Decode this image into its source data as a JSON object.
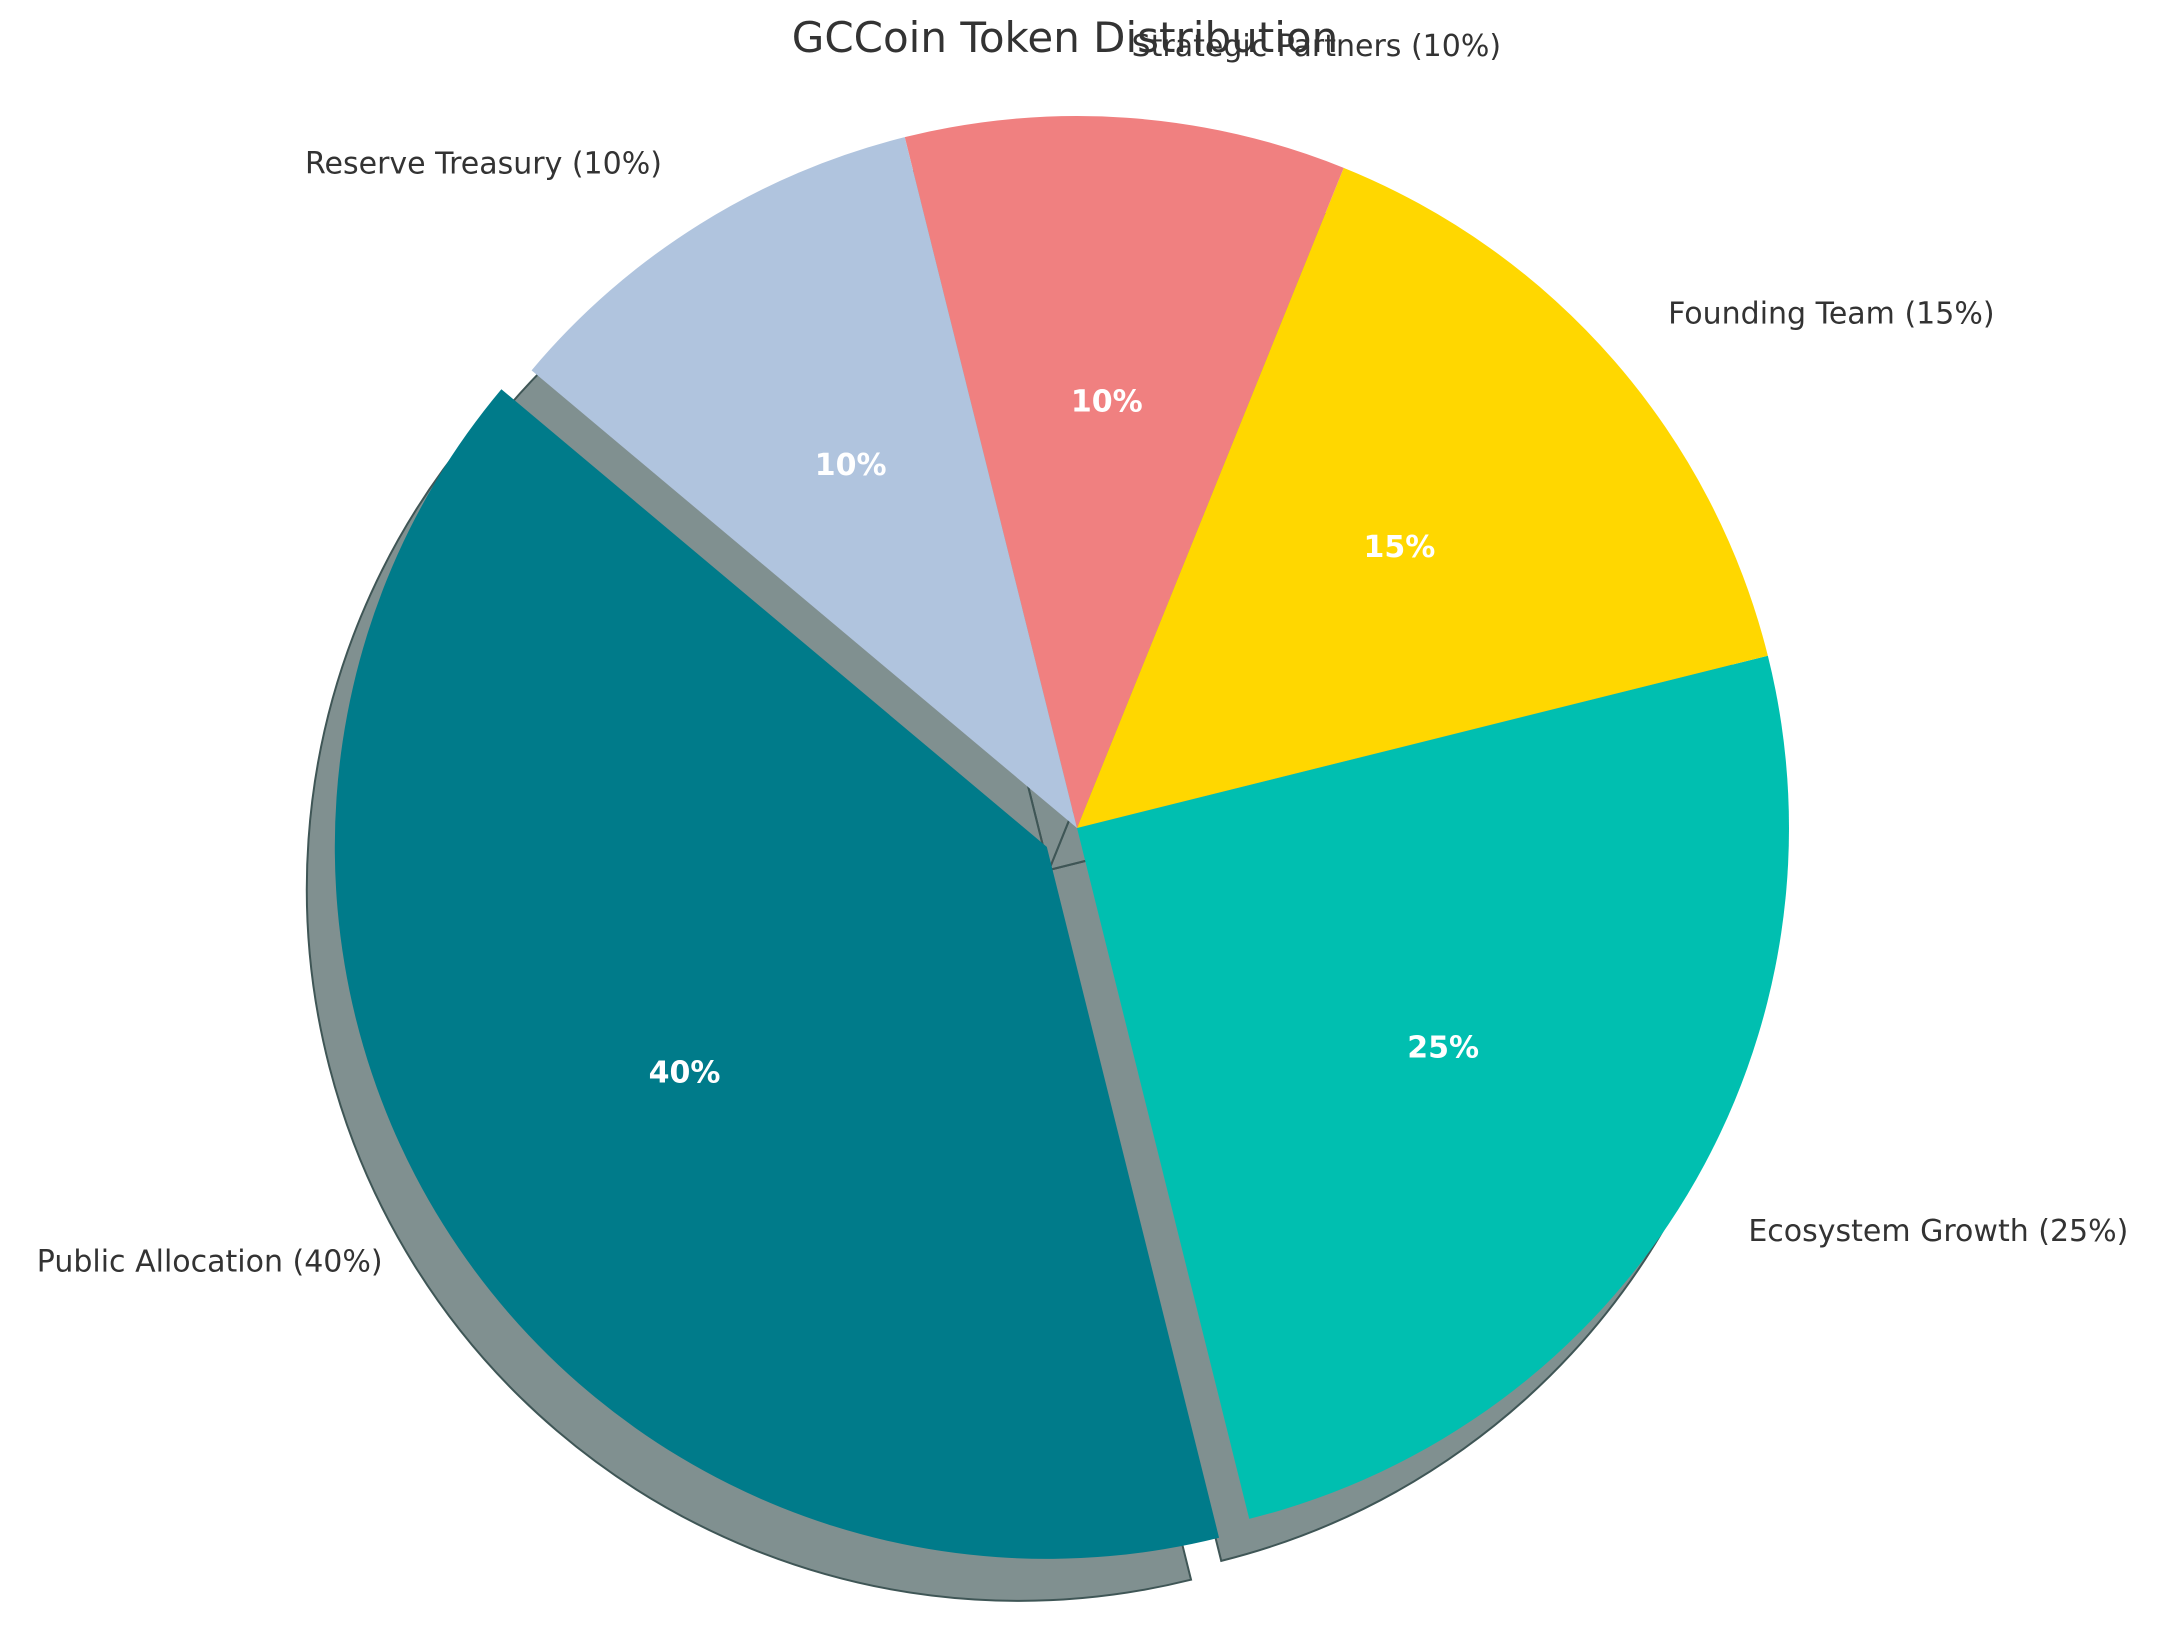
{
  "chart_data": {
    "type": "pie",
    "title": "GCCoin Token Distribution",
    "slices": [
      {
        "label": "Public Allocation (40%)",
        "value": 40,
        "pct_label": "40%",
        "color": "#007B8A",
        "exploded": true
      },
      {
        "label": "Ecosystem Growth (25%)",
        "value": 25,
        "pct_label": "25%",
        "color": "#00BFB0",
        "exploded": false
      },
      {
        "label": "Founding Team (15%)",
        "value": 15,
        "pct_label": "15%",
        "color": "#FFD700",
        "exploded": false
      },
      {
        "label": "Strategic Partners (10%)",
        "value": 10,
        "pct_label": "10%",
        "color": "#F08080",
        "exploded": false
      },
      {
        "label": "Reserve Treasury (10%)",
        "value": 10,
        "pct_label": "10%",
        "color": "#B0C4DE",
        "exploded": false
      }
    ],
    "start_angle_deg": 140,
    "shadow": true,
    "legend": "none"
  }
}
